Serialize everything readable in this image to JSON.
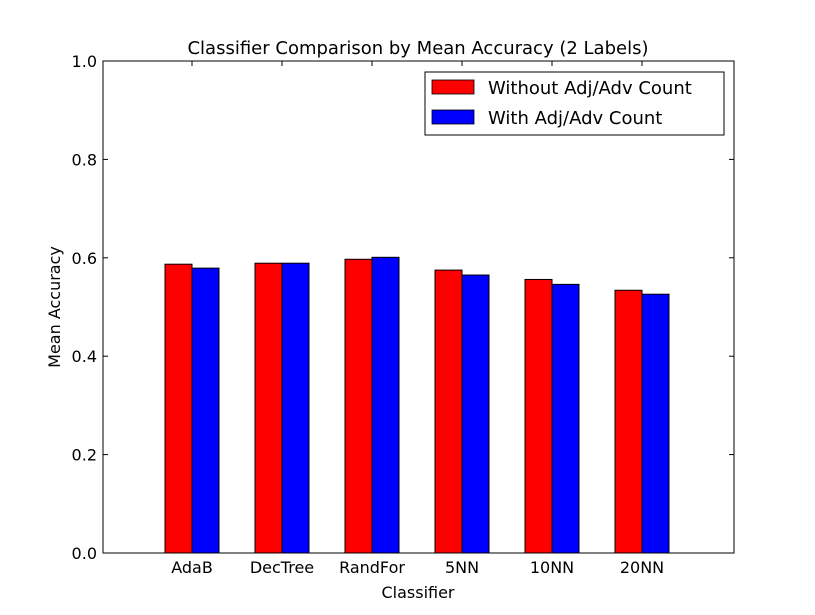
{
  "chart_data": {
    "type": "bar",
    "title": "Classifier Comparison by Mean Accuracy (2 Labels)",
    "xlabel": "Classifier",
    "ylabel": "Mean Accuracy",
    "ylim": [
      0,
      1.0
    ],
    "yticks": [
      "0.0",
      "0.2",
      "0.4",
      "0.6",
      "0.8",
      "1.0"
    ],
    "categories": [
      "AdaB",
      "DecTree",
      "RandFor",
      "5NN",
      "10NN",
      "20NN"
    ],
    "series": [
      {
        "name": "Without Adj/Adv Count",
        "color": "#ff0000",
        "values": [
          0.587,
          0.589,
          0.597,
          0.575,
          0.556,
          0.534
        ]
      },
      {
        "name": "With Adj/Adv Count",
        "color": "#0000ff",
        "values": [
          0.579,
          0.589,
          0.601,
          0.565,
          0.546,
          0.526
        ]
      }
    ],
    "legend_position": "top-right",
    "grid": false
  }
}
